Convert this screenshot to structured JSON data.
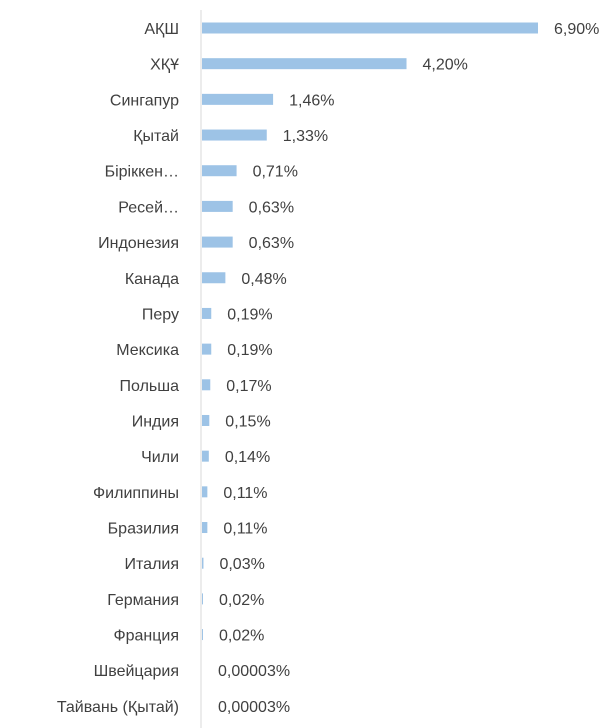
{
  "chart_data": {
    "type": "bar",
    "orientation": "horizontal",
    "categories": [
      "АҚШ",
      "ХҚҰ",
      "Сингапур",
      "Қытай",
      "Біріккен…",
      "Ресей…",
      "Индонезия",
      "Канада",
      "Перу",
      "Мексика",
      "Польша",
      "Индия",
      "Чили",
      "Филиппины",
      "Бразилия",
      "Италия",
      "Германия",
      "Франция",
      "Швейцария",
      "Тайвань (Қытай)"
    ],
    "values": [
      6.9,
      4.2,
      1.46,
      1.33,
      0.71,
      0.63,
      0.63,
      0.48,
      0.19,
      0.19,
      0.17,
      0.15,
      0.14,
      0.11,
      0.11,
      0.03,
      0.02,
      0.02,
      3e-05,
      3e-05
    ],
    "value_labels": [
      "6,90%",
      "4,20%",
      "1,46%",
      "1,33%",
      "0,71%",
      "0,63%",
      "0,63%",
      "0,48%",
      "0,19%",
      "0,19%",
      "0,17%",
      "0,15%",
      "0,14%",
      "0,11%",
      "0,11%",
      "0,03%",
      "0,02%",
      "0,02%",
      "0,00003%",
      "0,00003%"
    ],
    "title": "",
    "xlabel": "",
    "ylabel": "",
    "xlim": [
      0,
      6.9
    ],
    "grid": false,
    "legend": "none",
    "bar_color": "#9dc3e6",
    "axis_color": "#d9d9d9",
    "text_color": "#404040"
  }
}
